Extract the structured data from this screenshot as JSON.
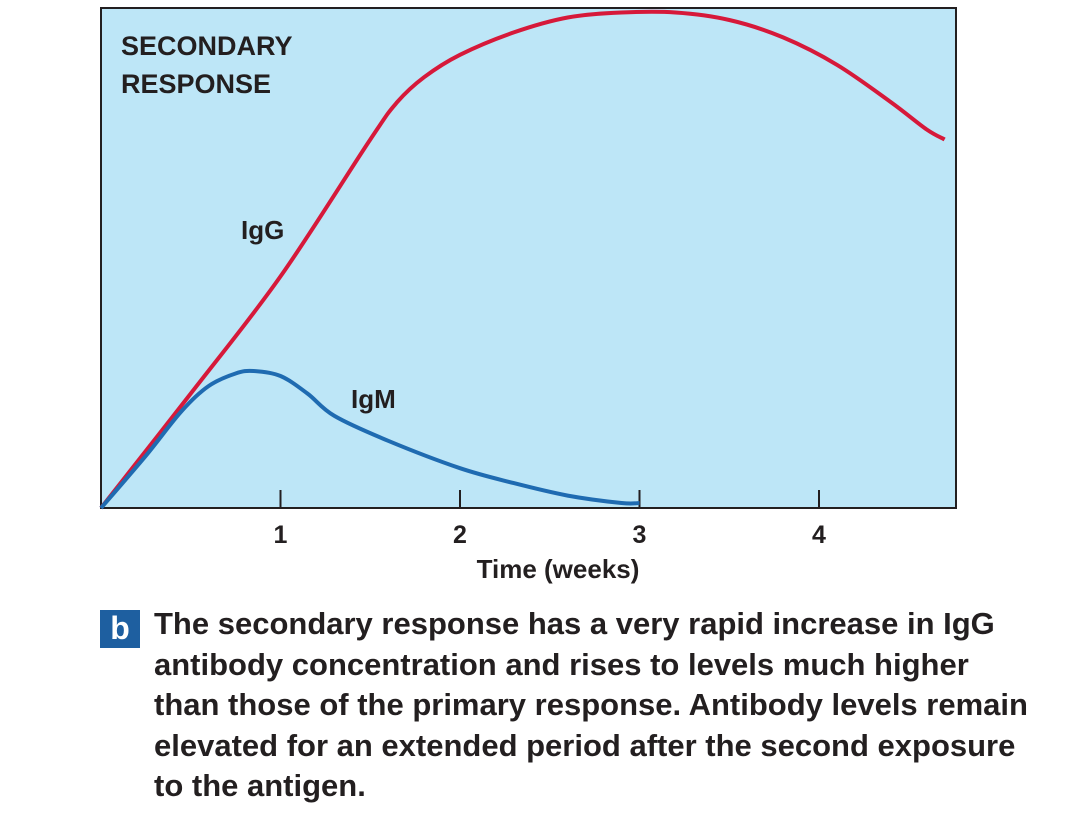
{
  "chart_data": {
    "type": "line",
    "title": "SECONDARY RESPONSE",
    "title_lines": [
      "SECONDARY",
      "RESPONSE"
    ],
    "xlabel": "Time (weeks)",
    "ylabel": "",
    "xlim": [
      0,
      4.75
    ],
    "ylim": [
      0,
      100
    ],
    "xticks": [
      1,
      2,
      3,
      4
    ],
    "xtick_labels": [
      "1",
      "2",
      "3",
      "4"
    ],
    "grid": false,
    "background_color": "#bde6f7",
    "series": [
      {
        "name": "IgG",
        "label": "IgG",
        "color": "#d6193a",
        "x": [
          0,
          0.5,
          1.0,
          1.5,
          1.65,
          1.8,
          2.0,
          2.3,
          2.6,
          2.9,
          3.2,
          3.5,
          3.8,
          4.1,
          4.4,
          4.6,
          4.7
        ],
        "y": [
          0,
          23,
          46.5,
          74,
          81.5,
          86.5,
          91,
          95.5,
          98.5,
          99.5,
          99.5,
          98,
          94.5,
          89,
          81.5,
          76,
          74
        ]
      },
      {
        "name": "IgM",
        "label": "IgM",
        "color": "#1f6bb1",
        "x": [
          0,
          0.25,
          0.45,
          0.6,
          0.75,
          0.85,
          1.0,
          1.15,
          1.3,
          1.6,
          2.0,
          2.3,
          2.6,
          2.9,
          3.0
        ],
        "y": [
          0,
          10.5,
          19.5,
          24.5,
          27,
          27.5,
          26.5,
          23,
          18.5,
          13.5,
          8,
          5,
          2.5,
          1,
          1
        ]
      }
    ]
  },
  "caption": {
    "badge": "b",
    "text": "The secondary response has a very rapid increase in IgG antibody concentration and rises to levels much higher than those of the primary response. Antibody levels remain elevated for an extended period after the second exposure to the antigen."
  }
}
